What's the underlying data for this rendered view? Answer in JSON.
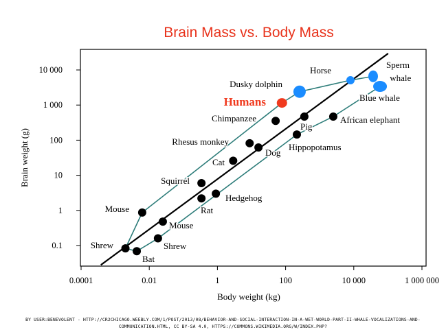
{
  "colors": {
    "title": "#e8331c",
    "humans": "#f03a1e",
    "whale_blue": "#1a8cff",
    "guide_line": "#2e7d7a",
    "points": "#000000"
  },
  "chart_data": {
    "type": "scatter",
    "title": "Brain Mass vs. Body Mass",
    "xlabel": "Body weight (kg)",
    "ylabel": "Brain weight (g)",
    "x_scale": "log",
    "y_scale": "log",
    "xlim": [
      0.0001,
      3000000
    ],
    "ylim": [
      0.025,
      50000
    ],
    "x_ticks": [
      0.0001,
      0.01,
      1,
      100,
      10000,
      1000000
    ],
    "x_tick_labels": [
      "0.0001",
      "0.01",
      "1",
      "100",
      "10 000",
      "1 000 000"
    ],
    "y_ticks": [
      0.1,
      1,
      10,
      100,
      1000,
      10000
    ],
    "y_tick_labels": [
      "0.1",
      "1",
      "10",
      "100",
      "1 000",
      "10 000"
    ],
    "grid": false,
    "points": [
      {
        "label": "Shrew",
        "x": 0.002,
        "y": 0.083,
        "group": "mammal"
      },
      {
        "label": "Bat",
        "x": 0.0043,
        "y": 0.069,
        "group": "mammal"
      },
      {
        "label": "Shrew",
        "x": 0.018,
        "y": 0.16,
        "group": "mammal"
      },
      {
        "label": "Mouse",
        "x": 0.0062,
        "y": 0.87,
        "group": "mammal"
      },
      {
        "label": "Mouse",
        "x": 0.025,
        "y": 0.48,
        "group": "mammal"
      },
      {
        "label": "Squirrel",
        "x": 0.34,
        "y": 6.0,
        "group": "mammal"
      },
      {
        "label": "Rat",
        "x": 0.34,
        "y": 2.2,
        "group": "mammal"
      },
      {
        "label": "Hedgehog",
        "x": 0.9,
        "y": 3.0,
        "group": "mammal"
      },
      {
        "label": "Cat",
        "x": 2.9,
        "y": 26,
        "group": "mammal"
      },
      {
        "label": "Rhesus monkey",
        "x": 8.8,
        "y": 82,
        "group": "mammal"
      },
      {
        "label": "Dog",
        "x": 16,
        "y": 62,
        "group": "mammal"
      },
      {
        "label": "Chimpanzee",
        "x": 51,
        "y": 355,
        "group": "mammal"
      },
      {
        "label": "Humans",
        "x": 78,
        "y": 1150,
        "group": "human"
      },
      {
        "label": "Dusky dolphin",
        "x": 257,
        "y": 2400,
        "group": "cetacean"
      },
      {
        "label": "Horse",
        "x": 355,
        "y": 470,
        "group": "mammal"
      },
      {
        "label": "Pig",
        "x": 214,
        "y": 145,
        "group": "mammal"
      },
      {
        "label": "Hippopotamus",
        "x": 2500,
        "y": 470,
        "group": "mammal"
      },
      {
        "label": "African elephant",
        "x": 8000,
        "y": 5100,
        "group": "cetacean"
      },
      {
        "label": "Sperm whale",
        "x": 37000,
        "y": 6600,
        "group": "cetacean"
      },
      {
        "label": "Blue whale",
        "x": 59000,
        "y": 3400,
        "group": "cetacean"
      }
    ],
    "trend_line": [
      {
        "x": 0.00038,
        "y": 0.028
      },
      {
        "x": 102000,
        "y": 29500
      }
    ],
    "upper_envelope": [
      0,
      3,
      12,
      13,
      17,
      18
    ],
    "lower_envelope": [
      0,
      1,
      2,
      15,
      16,
      19
    ]
  },
  "credit": "By User:Benevolent - http://cr2chicago.weebly.com/1/post/2013/08/behavior-and-social-interaction-in-a-wet-world-part-ii-whale-vocalizations-and-communication.html, CC BY-SA 4.0, https://commons.wikimedia.org/w/index.php?"
}
